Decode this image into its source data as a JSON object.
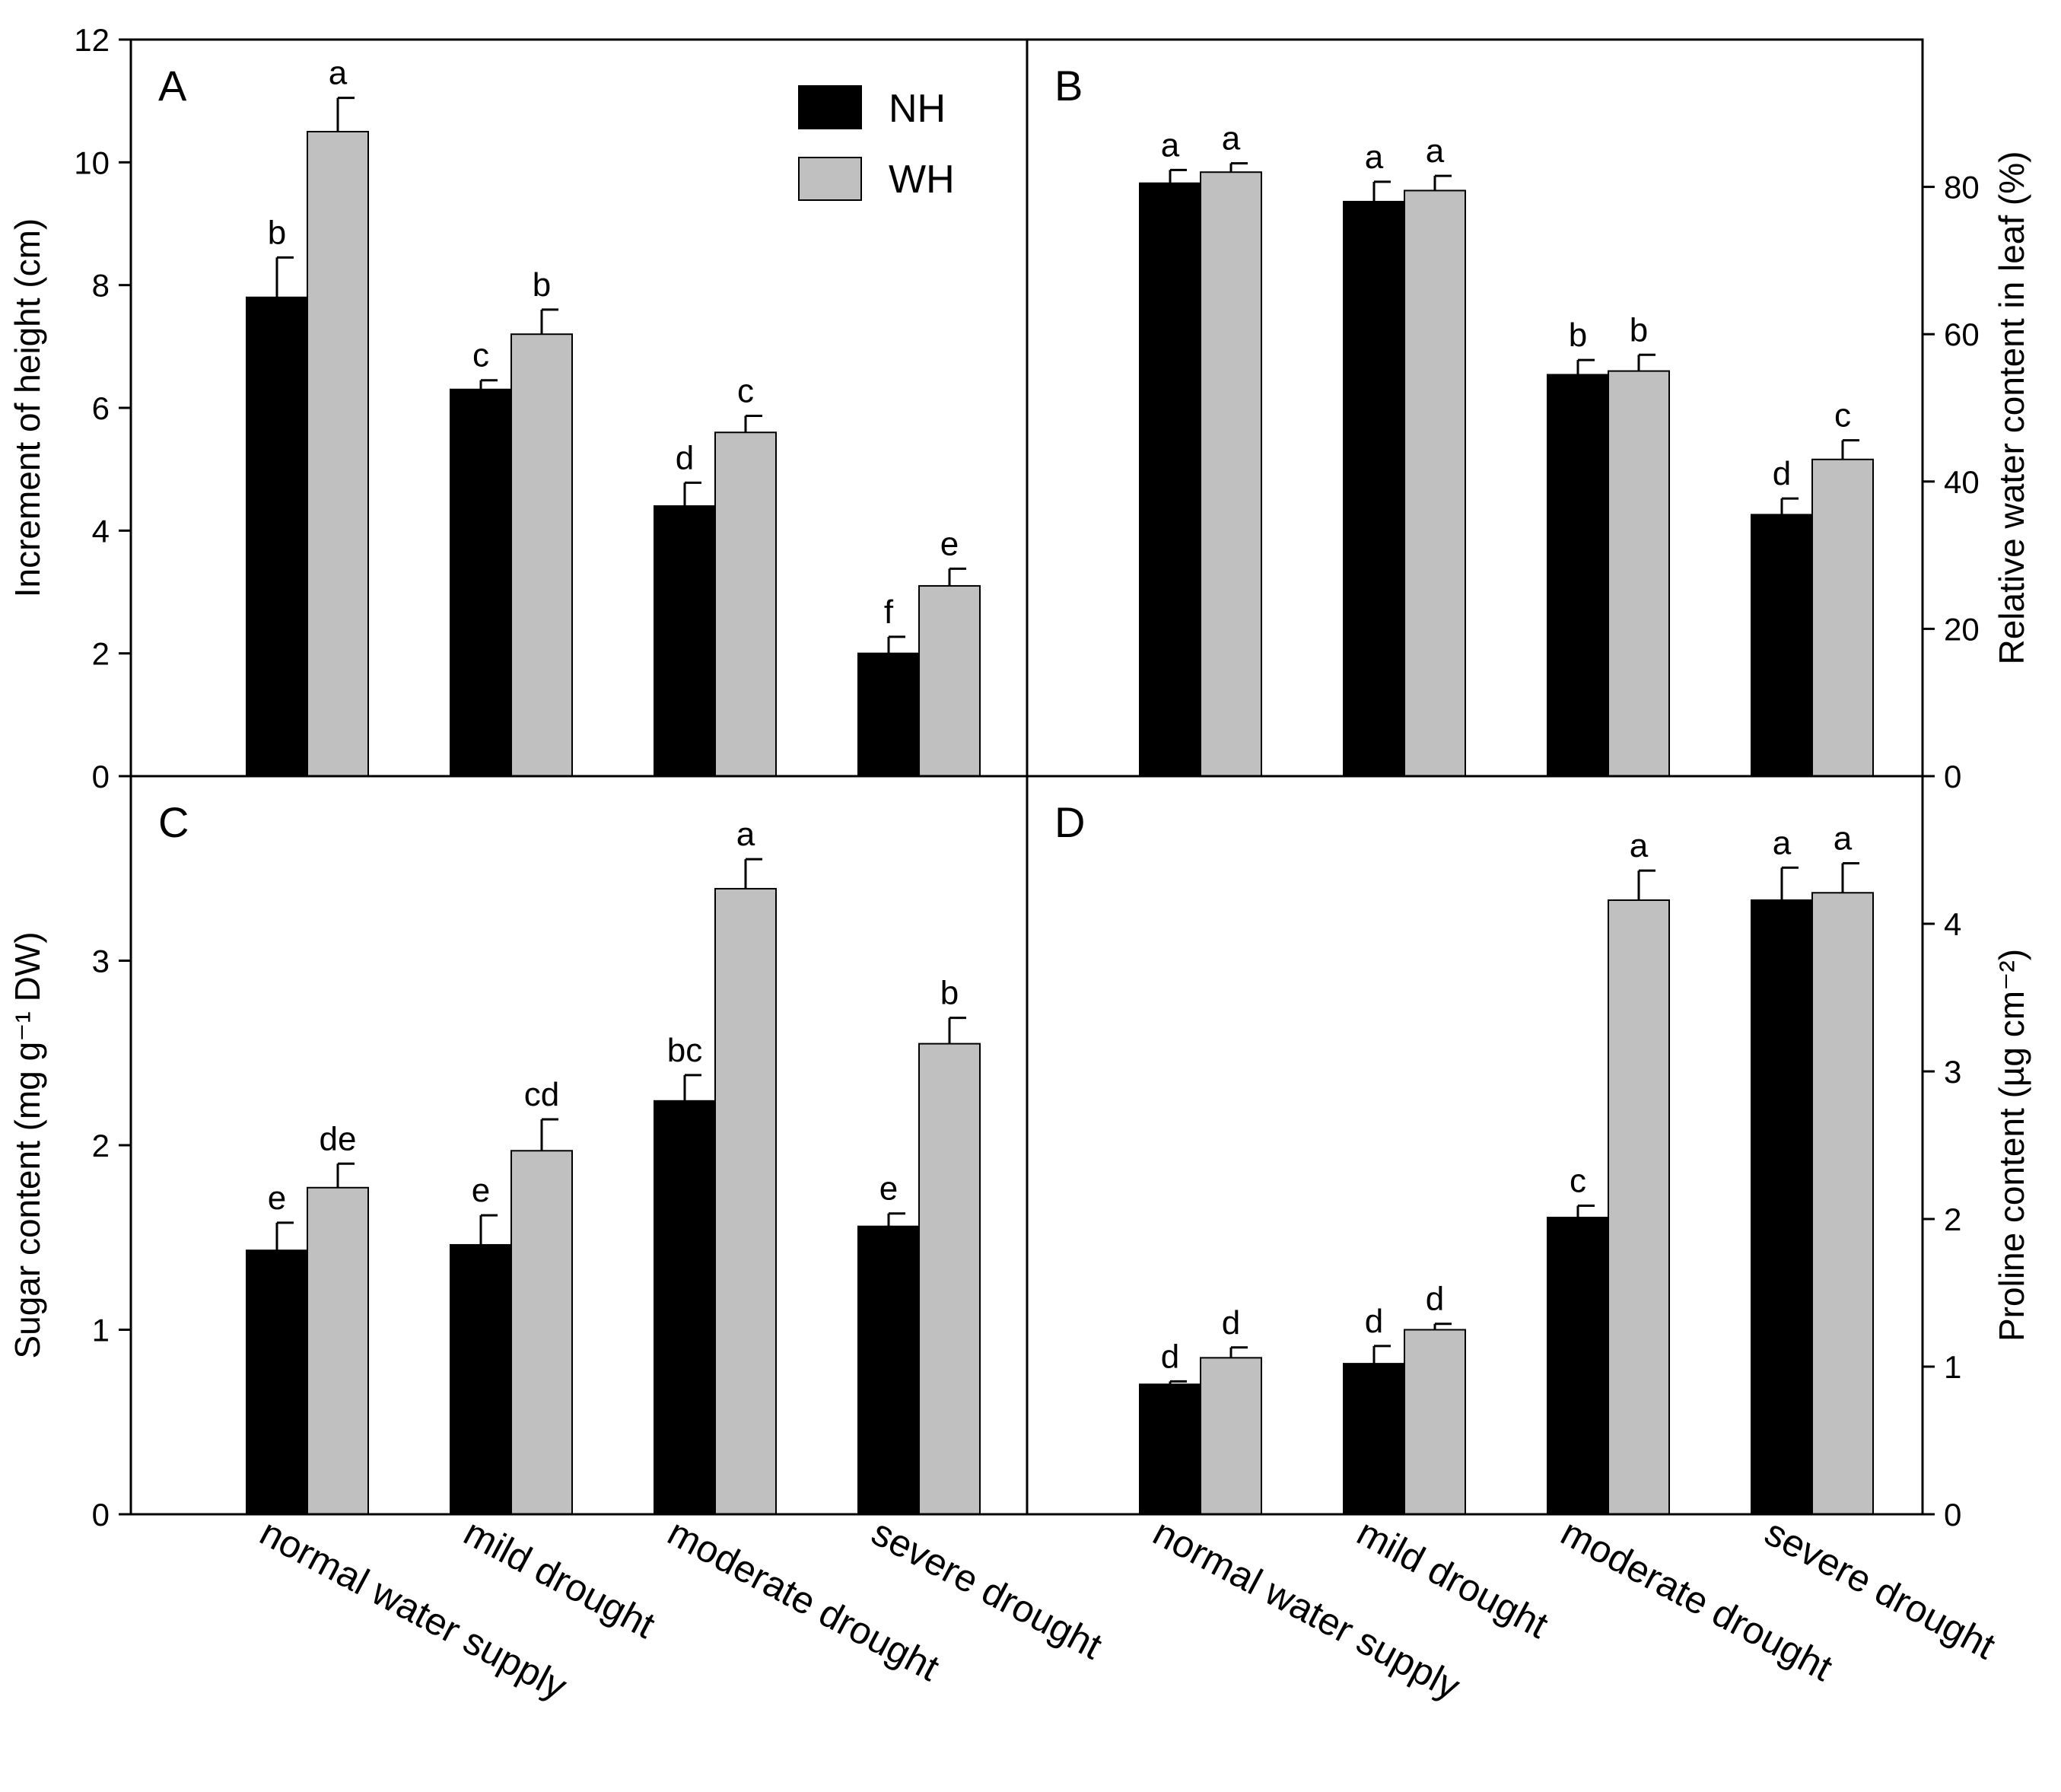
{
  "figure": {
    "categories": [
      "normal water supply",
      "mild drought",
      "moderate drought",
      "severe drought"
    ],
    "legend": [
      {
        "name": "NH",
        "color": "#000000"
      },
      {
        "name": "WH",
        "color": "#c0c0c0"
      }
    ]
  },
  "chart_data": [
    {
      "panel": "A",
      "type": "bar",
      "ylabel": "Increment of height (cm)",
      "axis_side": "left",
      "ylim": [
        0,
        12
      ],
      "yticks": [
        0,
        2,
        4,
        6,
        8,
        10,
        12
      ],
      "categories": [
        "normal water supply",
        "mild drought",
        "moderate drought",
        "severe drought"
      ],
      "series": [
        {
          "name": "NH",
          "color": "#000000",
          "values": [
            7.8,
            6.3,
            4.4,
            2.0
          ],
          "errors": [
            0.65,
            0.15,
            0.38,
            0.27
          ],
          "labels": [
            "b",
            "c",
            "d",
            "f"
          ]
        },
        {
          "name": "WH",
          "color": "#c0c0c0",
          "values": [
            10.5,
            7.2,
            5.6,
            3.1
          ],
          "errors": [
            0.55,
            0.4,
            0.27,
            0.28
          ],
          "labels": [
            "a",
            "b",
            "c",
            "e"
          ]
        }
      ]
    },
    {
      "panel": "B",
      "type": "bar",
      "ylabel": "Relative water content in leaf (%)",
      "axis_side": "right",
      "ylim": [
        0,
        100
      ],
      "yticks": [
        0,
        20,
        40,
        60,
        80
      ],
      "categories": [
        "normal water supply",
        "mild drought",
        "moderate drought",
        "severe drought"
      ],
      "series": [
        {
          "name": "NH",
          "color": "#000000",
          "values": [
            80.5,
            78.0,
            54.5,
            35.5
          ],
          "errors": [
            1.8,
            2.7,
            2.0,
            2.2
          ],
          "labels": [
            "a",
            "a",
            "b",
            "d"
          ]
        },
        {
          "name": "WH",
          "color": "#c0c0c0",
          "values": [
            82.0,
            79.5,
            55.0,
            43.0
          ],
          "errors": [
            1.2,
            2.0,
            2.2,
            2.6
          ],
          "labels": [
            "a",
            "a",
            "b",
            "c"
          ]
        }
      ]
    },
    {
      "panel": "C",
      "type": "bar",
      "ylabel": "Sugar content (mg g⁻¹ DW)",
      "axis_side": "left",
      "ylim": [
        0,
        4
      ],
      "yticks": [
        0,
        1,
        2,
        3
      ],
      "categories": [
        "normal water supply",
        "mild drought",
        "moderate drought",
        "severe drought"
      ],
      "series": [
        {
          "name": "NH",
          "color": "#000000",
          "values": [
            1.43,
            1.46,
            2.24,
            1.56
          ],
          "errors": [
            0.15,
            0.16,
            0.14,
            0.07
          ],
          "labels": [
            "e",
            "e",
            "bc",
            "e"
          ]
        },
        {
          "name": "WH",
          "color": "#c0c0c0",
          "values": [
            1.77,
            1.97,
            3.39,
            2.55
          ],
          "errors": [
            0.13,
            0.17,
            0.16,
            0.14
          ],
          "labels": [
            "de",
            "cd",
            "a",
            "b"
          ]
        }
      ]
    },
    {
      "panel": "D",
      "type": "bar",
      "ylabel": "Proline content (µg cm⁻²)",
      "axis_side": "right",
      "ylim": [
        0,
        5
      ],
      "yticks": [
        0,
        1,
        2,
        3,
        4
      ],
      "categories": [
        "normal water supply",
        "mild drought",
        "moderate drought",
        "severe drought"
      ],
      "series": [
        {
          "name": "NH",
          "color": "#000000",
          "values": [
            0.88,
            1.02,
            2.01,
            4.16
          ],
          "errors": [
            0.02,
            0.12,
            0.08,
            0.22
          ],
          "labels": [
            "d",
            "d",
            "c",
            "a"
          ]
        },
        {
          "name": "WH",
          "color": "#c0c0c0",
          "values": [
            1.06,
            1.25,
            4.16,
            4.21
          ],
          "errors": [
            0.07,
            0.04,
            0.2,
            0.2
          ],
          "labels": [
            "d",
            "d",
            "a",
            "a"
          ]
        }
      ]
    }
  ]
}
